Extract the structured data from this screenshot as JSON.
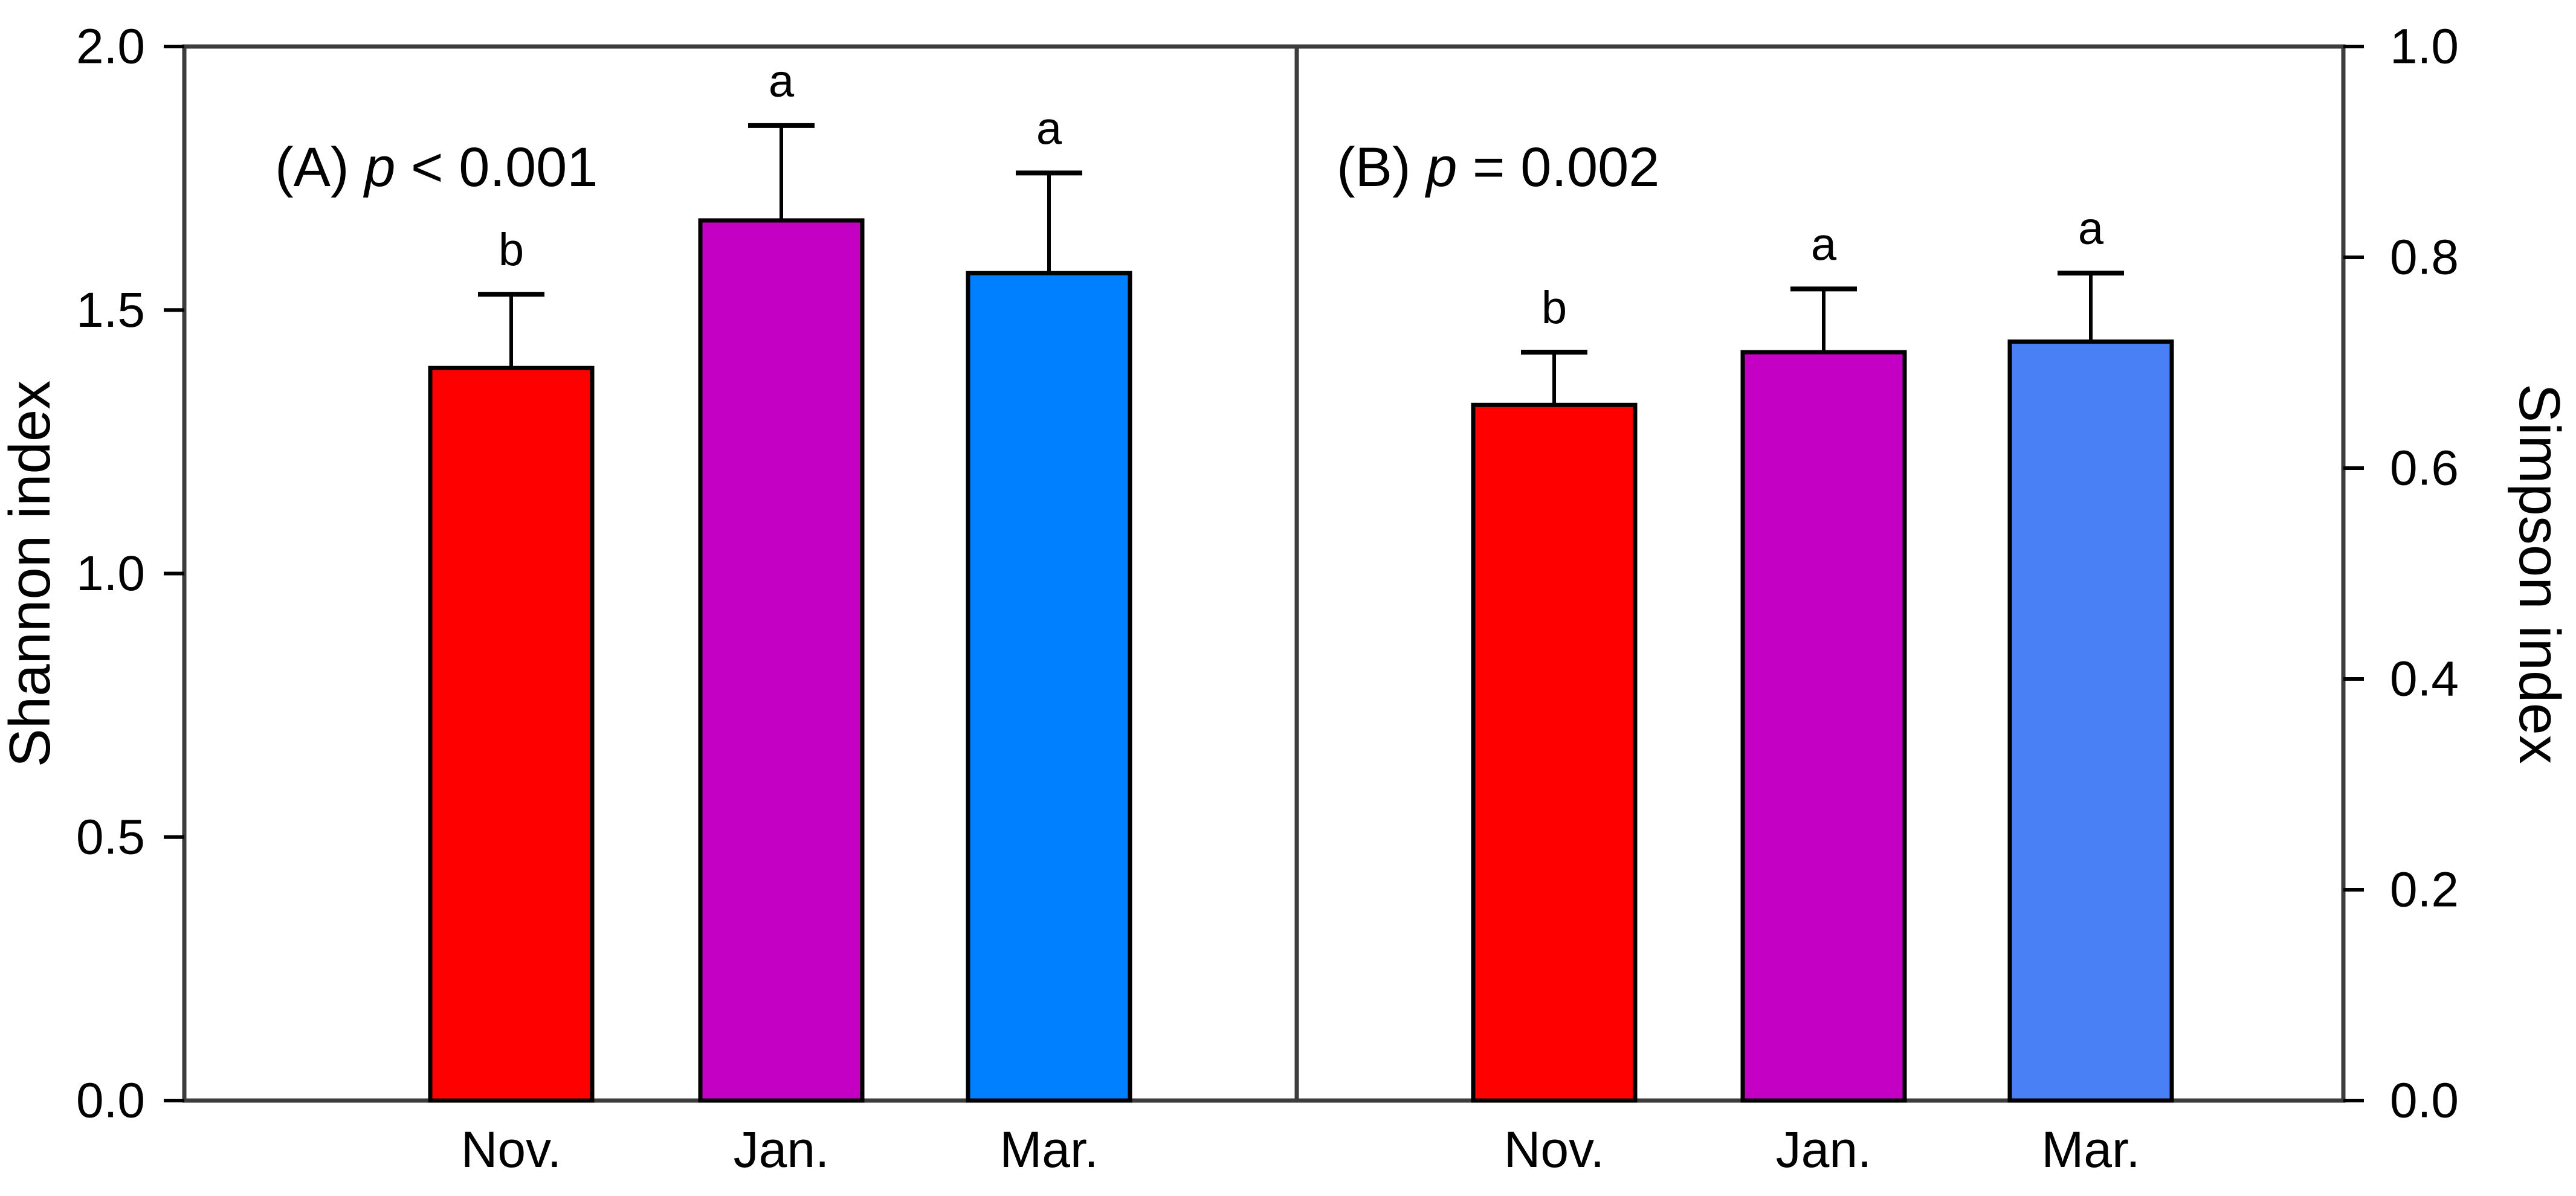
{
  "figure": {
    "background": "#ffffff",
    "frame_color": "#3d3d3d",
    "bar_outline_color": "#000000",
    "error_bar_color": "#000000"
  },
  "chart_data": [
    {
      "type": "bar",
      "panel": "A",
      "panel_label": {
        "prefix": "(A) ",
        "italic": "p",
        "suffix": " < 0.001"
      },
      "ylabel": "Shannon index",
      "yaxis_side": "left",
      "ylim": [
        0.0,
        2.0
      ],
      "ytick_labels": [
        "0.0",
        "0.5",
        "1.0",
        "1.5",
        "2.0"
      ],
      "categories": [
        "Nov.",
        "Jan.",
        "Mar."
      ],
      "values": [
        1.39,
        1.67,
        1.57
      ],
      "errors_plus": [
        0.14,
        0.18,
        0.19
      ],
      "sig_letters": [
        "b",
        "a",
        "a"
      ],
      "bar_colors": [
        "#ff0000",
        "#c400c4",
        "#0080ff"
      ],
      "grid": "off",
      "legend": "none"
    },
    {
      "type": "bar",
      "panel": "B",
      "panel_label": {
        "prefix": "(B) ",
        "italic": "p",
        "suffix": " = 0.002"
      },
      "ylabel": "Simpson index",
      "yaxis_side": "right",
      "ylim": [
        0.0,
        1.0
      ],
      "ytick_labels": [
        "0.0",
        "0.2",
        "0.4",
        "0.6",
        "0.8",
        "1.0"
      ],
      "categories": [
        "Nov.",
        "Jan.",
        "Mar."
      ],
      "values": [
        0.66,
        0.71,
        0.72
      ],
      "errors_plus": [
        0.05,
        0.06,
        0.065
      ],
      "sig_letters": [
        "b",
        "a",
        "a"
      ],
      "bar_colors": [
        "#ff0000",
        "#c400c4",
        "#4a80f5"
      ],
      "grid": "off",
      "legend": "none"
    }
  ]
}
